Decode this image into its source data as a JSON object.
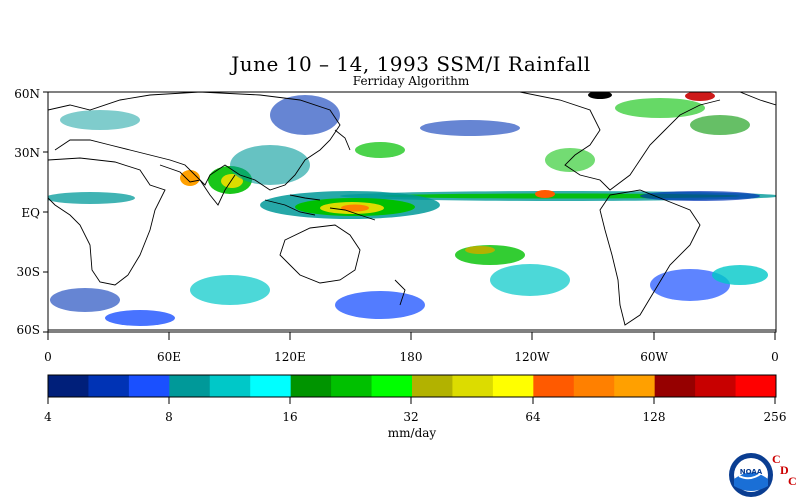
{
  "title": "June 10 – 14, 1993 SSM/I Rainfall",
  "subtitle": "Ferriday Algorithm",
  "lat_labels": [
    "60N",
    "30N",
    "EQ",
    "30S",
    "60S"
  ],
  "lon_labels": [
    "0",
    "60E",
    "120E",
    "180",
    "120W",
    "60W",
    "0"
  ],
  "colorbar": {
    "colors": [
      "#001f7a",
      "#0033b5",
      "#1a50ff",
      "#009999",
      "#00c8c8",
      "#00ffff",
      "#009400",
      "#00c000",
      "#00ff00",
      "#b2b200",
      "#dcdc00",
      "#ffff00",
      "#ff5a00",
      "#ff8000",
      "#ffa000",
      "#960000",
      "#c80000",
      "#ff0000"
    ],
    "tick_labels": [
      "4",
      "8",
      "16",
      "32",
      "64",
      "128",
      "256"
    ],
    "units": "mm/day"
  },
  "logo": {
    "icon": "noaa-logo",
    "text": "NOAA",
    "cdc_letters": [
      "C",
      "D",
      "C"
    ]
  }
}
